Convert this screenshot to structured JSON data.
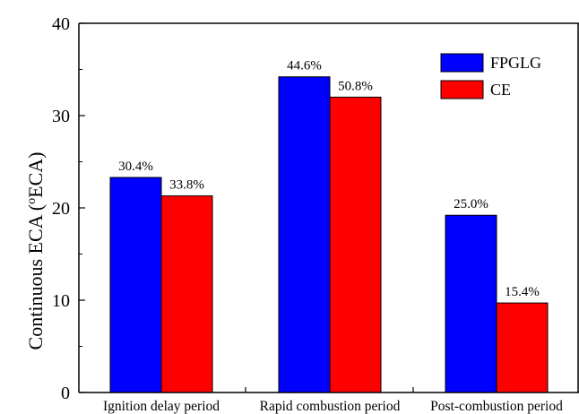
{
  "chart_data": {
    "type": "bar",
    "title": "",
    "xlabel": "",
    "ylabel": {
      "prefix": "Continuous ECA (",
      "superscript": "o",
      "suffix": "ECA)"
    },
    "ylim": [
      0,
      40
    ],
    "yticks": [
      "0",
      "10",
      "20",
      "30",
      "40"
    ],
    "grid": false,
    "legend_position": "top-right",
    "categories": [
      "Ignition delay period",
      "Rapid combustion period",
      "Post-combustion period"
    ],
    "series": [
      {
        "name": "FPGLG",
        "color": "#0000ff",
        "values": [
          23.3,
          34.2,
          19.2
        ],
        "labels": [
          "30.4%",
          "44.6%",
          "25.0%"
        ]
      },
      {
        "name": "CE",
        "color": "#ff0000",
        "values": [
          21.3,
          32.0,
          9.7
        ],
        "labels": [
          "33.8%",
          "50.8%",
          "15.4%"
        ]
      }
    ]
  }
}
